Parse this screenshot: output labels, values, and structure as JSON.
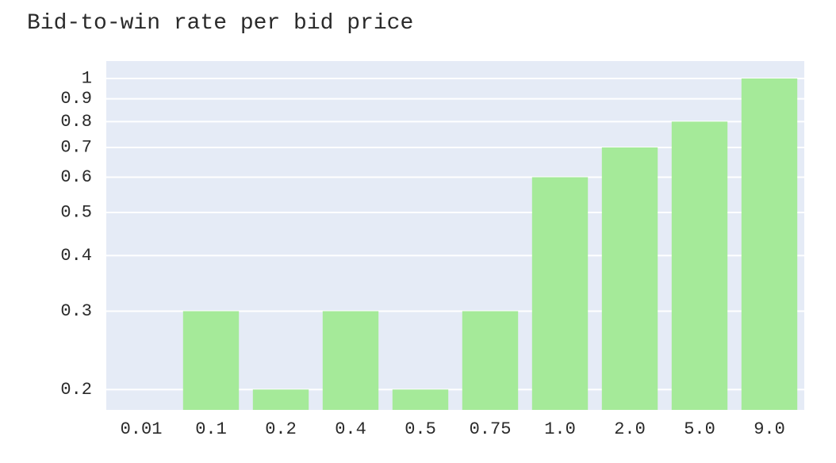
{
  "chart_data": {
    "type": "bar",
    "title": "Bid-to-win rate per bid price",
    "xlabel": "",
    "ylabel": "",
    "categories": [
      "0.01",
      "0.1",
      "0.2",
      "0.4",
      "0.5",
      "0.75",
      "1.0",
      "2.0",
      "5.0",
      "9.0"
    ],
    "values": [
      0.0,
      0.3,
      0.2,
      0.3,
      0.2,
      0.3,
      0.6,
      0.7,
      0.8,
      1.0
    ],
    "y_scale": "log",
    "ylim": [
      0.18,
      1.0
    ],
    "y_ticks": [
      0.2,
      0.3,
      0.4,
      0.5,
      0.6,
      0.7,
      0.8,
      0.9,
      1
    ],
    "y_tick_labels": [
      "0.2",
      "0.3",
      "0.4",
      "0.5",
      "0.6",
      "0.7",
      "0.8",
      "0.9",
      "1"
    ],
    "grid": true,
    "colors": {
      "bar": "#a5ea99",
      "plot_background": "#e5ebf6",
      "gridline": "#ffffff"
    }
  }
}
